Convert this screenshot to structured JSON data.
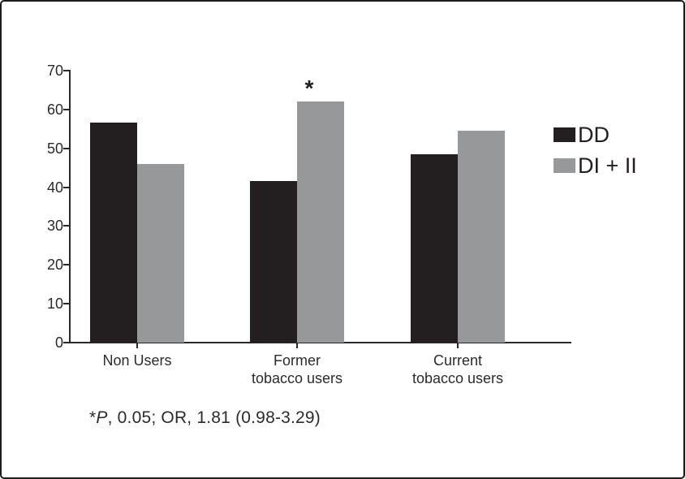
{
  "chart_data": {
    "type": "bar",
    "title": "",
    "xlabel": "",
    "ylabel": "",
    "categories": [
      "Non Users",
      "Former tobacco users",
      "Current tobacco users"
    ],
    "category_display_lines": [
      [
        "Non Users"
      ],
      [
        "Former",
        "tobacco users"
      ],
      [
        "Current",
        "tobacco users"
      ]
    ],
    "series": [
      {
        "name": "DD",
        "color": "#231f20",
        "values": [
          56.7,
          41.5,
          48.4
        ]
      },
      {
        "name": "DI + II",
        "color": "#97989a",
        "values": [
          45.9,
          62.0,
          54.5
        ]
      }
    ],
    "ylim": [
      0,
      70
    ],
    "yticks": [
      0,
      10,
      20,
      30,
      40,
      50,
      60,
      70
    ],
    "grid": false,
    "legend_position": "right",
    "annotations": [
      {
        "text": "*",
        "category_index": 1,
        "series_index": 1
      }
    ]
  },
  "footnote": {
    "prefix": "*",
    "italic": "P",
    "rest": ", 0.05; OR, 1.81 (0.98-3.29)"
  },
  "colors": {
    "series_dd": "#231f20",
    "series_di_ii": "#97989a",
    "axis": "#2a2a2a",
    "frame_border": "#1c1c1c",
    "background": "#ffffff"
  }
}
